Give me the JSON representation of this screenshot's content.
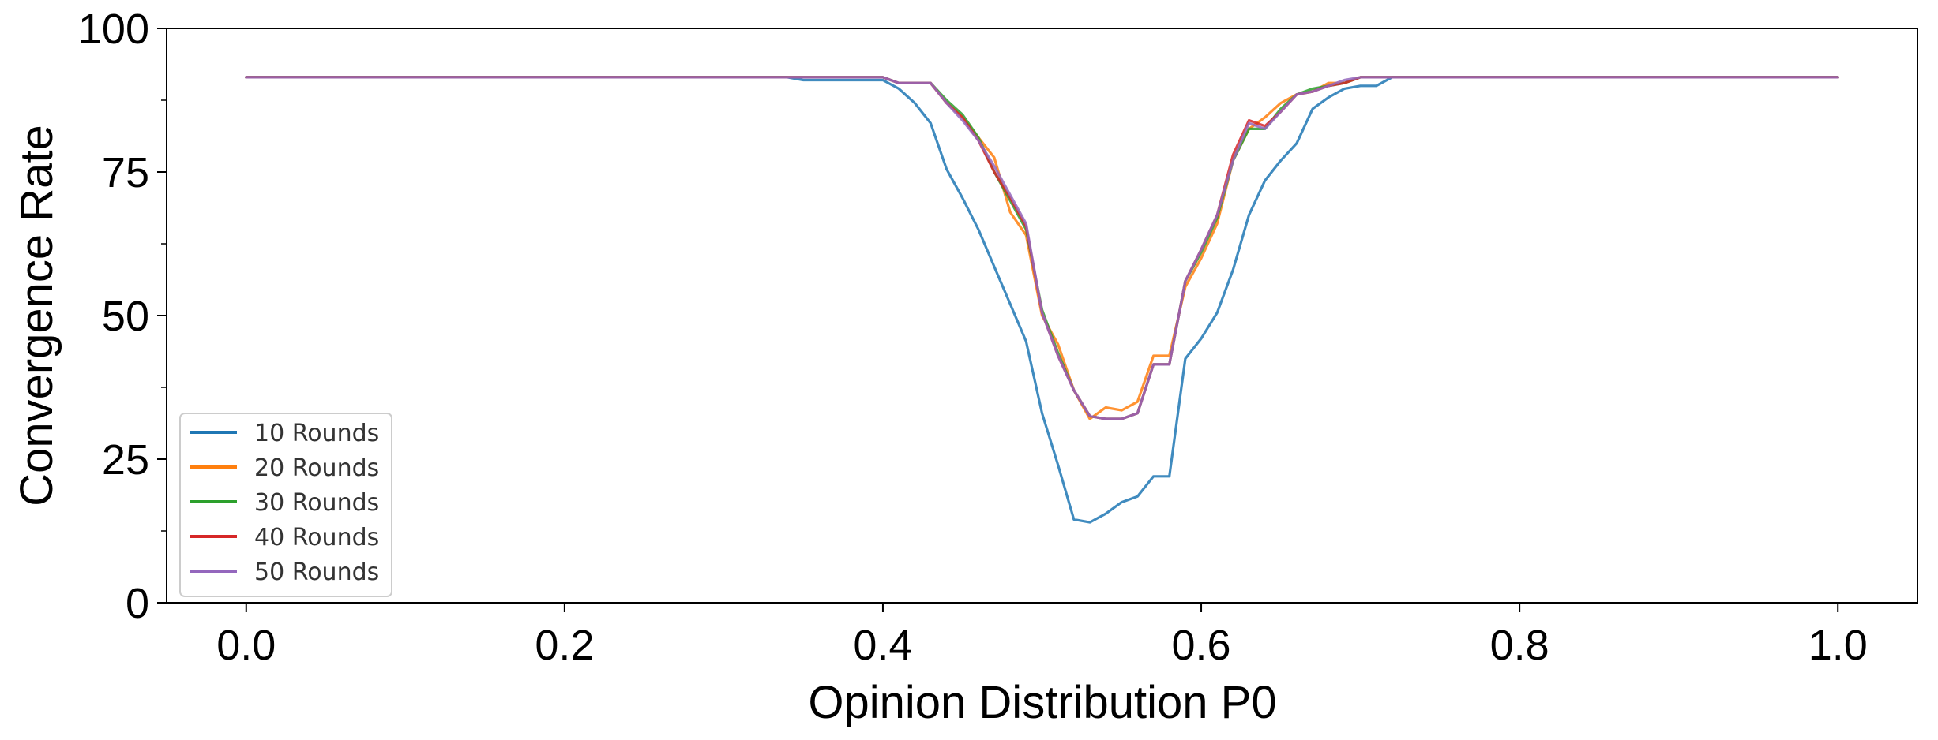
{
  "chart_data": {
    "type": "line",
    "title": "",
    "xlabel": "Opinion Distribution P0",
    "ylabel": "Convergence Rate",
    "xlim": [
      -0.05,
      1.05
    ],
    "ylim": [
      0,
      100
    ],
    "x_ticks": [
      "0.0",
      "0.2",
      "0.4",
      "0.6",
      "0.8",
      "1.0"
    ],
    "y_ticks": [
      "0",
      "25",
      "50",
      "75",
      "100"
    ],
    "grid": false,
    "legend_position": "lower-left",
    "series": [
      {
        "name": "10 Rounds",
        "color": "#1f77b4",
        "points": [
          [
            0.0,
            91.5
          ],
          [
            0.34,
            91.5
          ],
          [
            0.35,
            91
          ],
          [
            0.4,
            91
          ],
          [
            0.41,
            89.5
          ],
          [
            0.42,
            87
          ],
          [
            0.43,
            83.5
          ],
          [
            0.44,
            75.5
          ],
          [
            0.45,
            70.5
          ],
          [
            0.46,
            65
          ],
          [
            0.47,
            58.5
          ],
          [
            0.48,
            52
          ],
          [
            0.49,
            45.5
          ],
          [
            0.5,
            33
          ],
          [
            0.51,
            24
          ],
          [
            0.52,
            14.5
          ],
          [
            0.53,
            14
          ],
          [
            0.54,
            15.5
          ],
          [
            0.55,
            17.5
          ],
          [
            0.56,
            18.5
          ],
          [
            0.57,
            22
          ],
          [
            0.58,
            22
          ],
          [
            0.59,
            42.5
          ],
          [
            0.6,
            46
          ],
          [
            0.61,
            50.5
          ],
          [
            0.62,
            58
          ],
          [
            0.63,
            67.5
          ],
          [
            0.64,
            73.5
          ],
          [
            0.65,
            77
          ],
          [
            0.66,
            80
          ],
          [
            0.67,
            86
          ],
          [
            0.68,
            88
          ],
          [
            0.69,
            89.5
          ],
          [
            0.7,
            90
          ],
          [
            0.71,
            90
          ],
          [
            0.72,
            91.5
          ],
          [
            1.0,
            91.5
          ]
        ]
      },
      {
        "name": "20 Rounds",
        "color": "#ff7f0e",
        "points": [
          [
            0.0,
            91.5
          ],
          [
            0.4,
            91.5
          ],
          [
            0.41,
            90.5
          ],
          [
            0.43,
            90.5
          ],
          [
            0.44,
            87
          ],
          [
            0.45,
            84.5
          ],
          [
            0.46,
            81
          ],
          [
            0.47,
            77.5
          ],
          [
            0.48,
            68
          ],
          [
            0.49,
            64
          ],
          [
            0.5,
            50
          ],
          [
            0.51,
            45
          ],
          [
            0.52,
            37
          ],
          [
            0.53,
            32
          ],
          [
            0.54,
            34
          ],
          [
            0.55,
            33.5
          ],
          [
            0.56,
            35
          ],
          [
            0.57,
            43
          ],
          [
            0.58,
            43
          ],
          [
            0.59,
            55
          ],
          [
            0.6,
            60
          ],
          [
            0.61,
            66
          ],
          [
            0.62,
            77
          ],
          [
            0.63,
            82.5
          ],
          [
            0.64,
            84.5
          ],
          [
            0.65,
            87
          ],
          [
            0.66,
            88.5
          ],
          [
            0.67,
            89
          ],
          [
            0.68,
            90.5
          ],
          [
            0.69,
            90.5
          ],
          [
            0.7,
            91.5
          ],
          [
            1.0,
            91.5
          ]
        ]
      },
      {
        "name": "30 Rounds",
        "color": "#2ca02c",
        "points": [
          [
            0.0,
            91.5
          ],
          [
            0.4,
            91.5
          ],
          [
            0.41,
            90.5
          ],
          [
            0.43,
            90.5
          ],
          [
            0.44,
            87.5
          ],
          [
            0.45,
            85
          ],
          [
            0.46,
            81
          ],
          [
            0.47,
            75
          ],
          [
            0.48,
            70
          ],
          [
            0.49,
            65
          ],
          [
            0.5,
            51
          ],
          [
            0.51,
            43.5
          ],
          [
            0.52,
            37
          ],
          [
            0.53,
            32.5
          ],
          [
            0.54,
            32
          ],
          [
            0.55,
            32
          ],
          [
            0.56,
            33
          ],
          [
            0.57,
            41.5
          ],
          [
            0.58,
            41.5
          ],
          [
            0.59,
            56
          ],
          [
            0.6,
            61
          ],
          [
            0.61,
            67
          ],
          [
            0.62,
            77
          ],
          [
            0.63,
            82.5
          ],
          [
            0.64,
            82.5
          ],
          [
            0.65,
            86
          ],
          [
            0.66,
            88.5
          ],
          [
            0.67,
            89.5
          ],
          [
            0.68,
            90
          ],
          [
            0.69,
            90.5
          ],
          [
            0.7,
            91.5
          ],
          [
            1.0,
            91.5
          ]
        ]
      },
      {
        "name": "40 Rounds",
        "color": "#d62728",
        "points": [
          [
            0.0,
            91.5
          ],
          [
            0.4,
            91.5
          ],
          [
            0.41,
            90.5
          ],
          [
            0.43,
            90.5
          ],
          [
            0.44,
            87
          ],
          [
            0.45,
            84.5
          ],
          [
            0.46,
            80.5
          ],
          [
            0.47,
            75
          ],
          [
            0.48,
            70.5
          ],
          [
            0.49,
            65.5
          ],
          [
            0.5,
            50.5
          ],
          [
            0.51,
            43
          ],
          [
            0.52,
            37
          ],
          [
            0.53,
            32.5
          ],
          [
            0.54,
            32
          ],
          [
            0.55,
            32
          ],
          [
            0.56,
            33
          ],
          [
            0.57,
            41.5
          ],
          [
            0.58,
            41.5
          ],
          [
            0.59,
            56
          ],
          [
            0.6,
            61.5
          ],
          [
            0.61,
            67.5
          ],
          [
            0.62,
            78
          ],
          [
            0.63,
            84
          ],
          [
            0.64,
            83
          ],
          [
            0.65,
            85.5
          ],
          [
            0.66,
            88.5
          ],
          [
            0.67,
            89
          ],
          [
            0.68,
            90
          ],
          [
            0.69,
            90.5
          ],
          [
            0.7,
            91.5
          ],
          [
            1.0,
            91.5
          ]
        ]
      },
      {
        "name": "50 Rounds",
        "color": "#9467bd",
        "points": [
          [
            0.0,
            91.5
          ],
          [
            0.4,
            91.5
          ],
          [
            0.41,
            90.5
          ],
          [
            0.43,
            90.5
          ],
          [
            0.44,
            87
          ],
          [
            0.45,
            84
          ],
          [
            0.46,
            80.5
          ],
          [
            0.47,
            76
          ],
          [
            0.48,
            71
          ],
          [
            0.49,
            66
          ],
          [
            0.5,
            50.5
          ],
          [
            0.51,
            43
          ],
          [
            0.52,
            37
          ],
          [
            0.53,
            32.5
          ],
          [
            0.54,
            32
          ],
          [
            0.55,
            32
          ],
          [
            0.56,
            33
          ],
          [
            0.57,
            41.5
          ],
          [
            0.58,
            41.5
          ],
          [
            0.59,
            56
          ],
          [
            0.6,
            61.5
          ],
          [
            0.61,
            67.5
          ],
          [
            0.62,
            77
          ],
          [
            0.63,
            83.5
          ],
          [
            0.64,
            82.5
          ],
          [
            0.65,
            85.5
          ],
          [
            0.66,
            88.5
          ],
          [
            0.67,
            89
          ],
          [
            0.68,
            90
          ],
          [
            0.69,
            91
          ],
          [
            0.7,
            91.5
          ],
          [
            1.0,
            91.5
          ]
        ]
      }
    ]
  }
}
